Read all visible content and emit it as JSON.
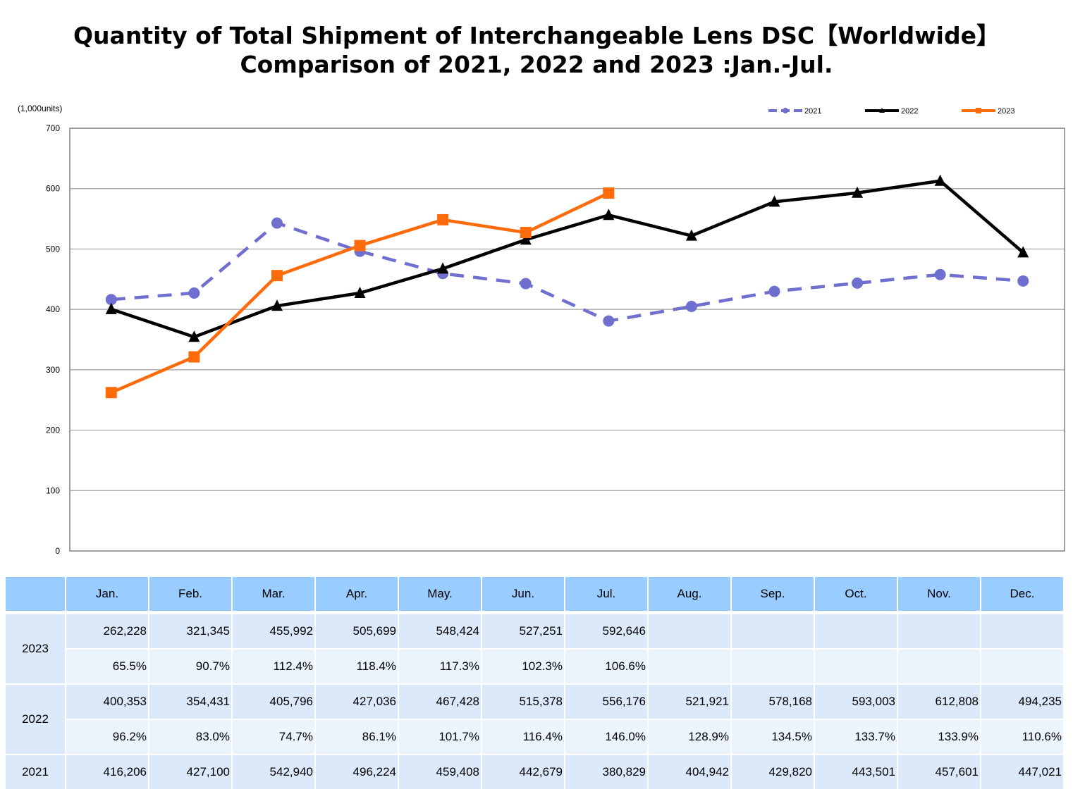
{
  "title_line1": "Quantity of Total Shipment of Interchangeable Lens DSC【Worldwide】",
  "title_line2": "Comparison of 2021, 2022 and 2023 :Jan.-Jul.",
  "chart_data": {
    "type": "line",
    "title": "Quantity of Total Shipment of Interchangeable Lens DSC【Worldwide】 Comparison of 2021, 2022 and 2023 :Jan.-Jul.",
    "unit_label": "(1,000units)",
    "xlabel": "",
    "ylabel": "(1,000units)",
    "ylim": [
      0,
      700
    ],
    "yticks": [
      0,
      100,
      200,
      300,
      400,
      500,
      600,
      700
    ],
    "grid": true,
    "legend_position": "top-right",
    "categories": [
      "Jan.",
      "Feb.",
      "Mar.",
      "Apr.",
      "May.",
      "Jun.",
      "Jul.",
      "Aug.",
      "Sep.",
      "Oct.",
      "Nov.",
      "Dec."
    ],
    "series": [
      {
        "name": "2021",
        "color": "#6f6fcf",
        "style": "dashed",
        "marker": "circle",
        "values": [
          416.206,
          427.1,
          542.94,
          496.224,
          459.408,
          442.679,
          380.829,
          404.942,
          429.82,
          443.501,
          457.601,
          447.021
        ]
      },
      {
        "name": "2022",
        "color": "#000000",
        "style": "solid",
        "marker": "triangle",
        "values": [
          400.353,
          354.431,
          405.796,
          427.036,
          467.428,
          515.378,
          556.176,
          521.921,
          578.168,
          593.003,
          612.808,
          494.235
        ]
      },
      {
        "name": "2023",
        "color": "#ff6a0a",
        "style": "solid",
        "marker": "square",
        "values": [
          262.228,
          321.345,
          455.992,
          505.699,
          548.424,
          527.251,
          592.646,
          null,
          null,
          null,
          null,
          null
        ]
      }
    ]
  },
  "table": {
    "months": [
      "Jan.",
      "Feb.",
      "Mar.",
      "Apr.",
      "May.",
      "Jun.",
      "Jul.",
      "Aug.",
      "Sep.",
      "Oct.",
      "Nov.",
      "Dec."
    ],
    "rows": [
      {
        "year": "2023",
        "units": [
          "262,228",
          "321,345",
          "455,992",
          "505,699",
          "548,424",
          "527,251",
          "592,646",
          "",
          "",
          "",
          "",
          ""
        ],
        "ratio": [
          "65.5%",
          "90.7%",
          "112.4%",
          "118.4%",
          "117.3%",
          "102.3%",
          "106.6%",
          "",
          "",
          "",
          "",
          ""
        ]
      },
      {
        "year": "2022",
        "units": [
          "400,353",
          "354,431",
          "405,796",
          "427,036",
          "467,428",
          "515,378",
          "556,176",
          "521,921",
          "578,168",
          "593,003",
          "612,808",
          "494,235"
        ],
        "ratio": [
          "96.2%",
          "83.0%",
          "74.7%",
          "86.1%",
          "101.7%",
          "116.4%",
          "146.0%",
          "128.9%",
          "134.5%",
          "133.7%",
          "133.9%",
          "110.6%"
        ]
      },
      {
        "year": "2021",
        "units": [
          "416,206",
          "427,100",
          "542,940",
          "496,224",
          "459,408",
          "442,679",
          "380,829",
          "404,942",
          "429,820",
          "443,501",
          "457,601",
          "447,021"
        ]
      }
    ]
  }
}
